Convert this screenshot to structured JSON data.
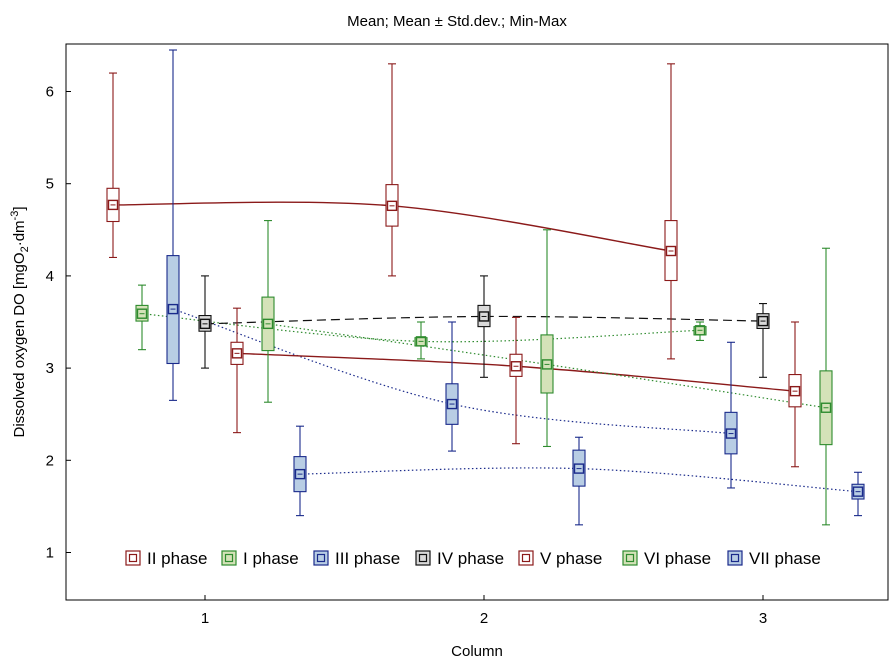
{
  "chart_data": {
    "type": "box",
    "title": "Mean; Mean ± Std.dev.; Min-Max",
    "xlabel": "Column",
    "ylabel_parts": [
      "Dissolved oxygen DO [mgO",
      "2",
      "·dm",
      "-3",
      "]"
    ],
    "categories": [
      "1",
      "2",
      "3"
    ],
    "x_ticks": [
      1,
      2,
      3
    ],
    "ylim": [
      0.5,
      6.5
    ],
    "y_ticks": [
      1,
      2,
      3,
      4,
      5,
      6
    ],
    "legend_position": "bottom",
    "series": [
      {
        "name": "II phase",
        "color": "#8b1a1a",
        "fill": "#ffffff",
        "line": "solid",
        "points": [
          {
            "category": "1",
            "mean": 4.77,
            "sd_low": 4.59,
            "sd_high": 4.95,
            "min": 4.2,
            "max": 6.2
          },
          {
            "category": "2",
            "mean": 4.76,
            "sd_low": 4.54,
            "sd_high": 4.99,
            "min": 4.0,
            "max": 6.3
          },
          {
            "category": "3",
            "mean": 4.27,
            "sd_low": 3.95,
            "sd_high": 4.6,
            "min": 3.1,
            "max": 6.3
          }
        ]
      },
      {
        "name": "I phase",
        "color": "#2e8b2e",
        "fill": "#d4e2b8",
        "line": "dotted",
        "points": [
          {
            "category": "1",
            "mean": 3.59,
            "sd_low": 3.51,
            "sd_high": 3.68,
            "min": 3.2,
            "max": 3.9
          },
          {
            "category": "2",
            "mean": 3.29,
            "sd_low": 3.24,
            "sd_high": 3.33,
            "min": 3.1,
            "max": 3.5
          },
          {
            "category": "3",
            "mean": 3.41,
            "sd_low": 3.36,
            "sd_high": 3.45,
            "min": 3.3,
            "max": 3.5
          }
        ]
      },
      {
        "name": "III phase",
        "color": "#1a2a8b",
        "fill": "#b8cde4",
        "line": "dotted",
        "points": [
          {
            "category": "1",
            "mean": 3.64,
            "sd_low": 3.05,
            "sd_high": 4.22,
            "min": 2.65,
            "max": 6.45
          },
          {
            "category": "2",
            "mean": 2.61,
            "sd_low": 2.39,
            "sd_high": 2.83,
            "min": 2.1,
            "max": 3.5
          },
          {
            "category": "3",
            "mean": 2.29,
            "sd_low": 2.07,
            "sd_high": 2.52,
            "min": 1.7,
            "max": 3.28
          }
        ]
      },
      {
        "name": "IV phase",
        "color": "#111111",
        "fill": "#d9d9d9",
        "line": "dashed",
        "points": [
          {
            "category": "1",
            "mean": 3.48,
            "sd_low": 3.4,
            "sd_high": 3.57,
            "min": 3.0,
            "max": 4.0
          },
          {
            "category": "2",
            "mean": 3.56,
            "sd_low": 3.45,
            "sd_high": 3.68,
            "min": 2.9,
            "max": 4.0
          },
          {
            "category": "3",
            "mean": 3.51,
            "sd_low": 3.43,
            "sd_high": 3.59,
            "min": 2.9,
            "max": 3.7
          }
        ]
      },
      {
        "name": "V phase",
        "color": "#8b1a1a",
        "fill": "#ffffff",
        "line": "solid",
        "points": [
          {
            "category": "1",
            "mean": 3.16,
            "sd_low": 3.04,
            "sd_high": 3.28,
            "min": 2.3,
            "max": 3.65
          },
          {
            "category": "2",
            "mean": 3.02,
            "sd_low": 2.91,
            "sd_high": 3.15,
            "min": 2.18,
            "max": 3.55
          },
          {
            "category": "3",
            "mean": 2.75,
            "sd_low": 2.58,
            "sd_high": 2.93,
            "min": 1.93,
            "max": 3.5
          }
        ]
      },
      {
        "name": "VI phase",
        "color": "#2e8b2e",
        "fill": "#d4e2b8",
        "line": "dotted",
        "points": [
          {
            "category": "1",
            "mean": 3.48,
            "sd_low": 3.19,
            "sd_high": 3.77,
            "min": 2.63,
            "max": 4.6
          },
          {
            "category": "2",
            "mean": 3.04,
            "sd_low": 2.73,
            "sd_high": 3.36,
            "min": 2.15,
            "max": 4.5
          },
          {
            "category": "3",
            "mean": 2.57,
            "sd_low": 2.17,
            "sd_high": 2.97,
            "min": 1.3,
            "max": 4.3
          }
        ]
      },
      {
        "name": "VII phase",
        "color": "#1a2a8b",
        "fill": "#b8cde4",
        "line": "dotted",
        "points": [
          {
            "category": "1",
            "mean": 1.85,
            "sd_low": 1.66,
            "sd_high": 2.04,
            "min": 1.4,
            "max": 2.37
          },
          {
            "category": "2",
            "mean": 1.91,
            "sd_low": 1.72,
            "sd_high": 2.11,
            "min": 1.3,
            "max": 2.25
          },
          {
            "category": "3",
            "mean": 1.66,
            "sd_low": 1.58,
            "sd_high": 1.74,
            "min": 1.4,
            "max": 1.87
          }
        ]
      }
    ]
  }
}
